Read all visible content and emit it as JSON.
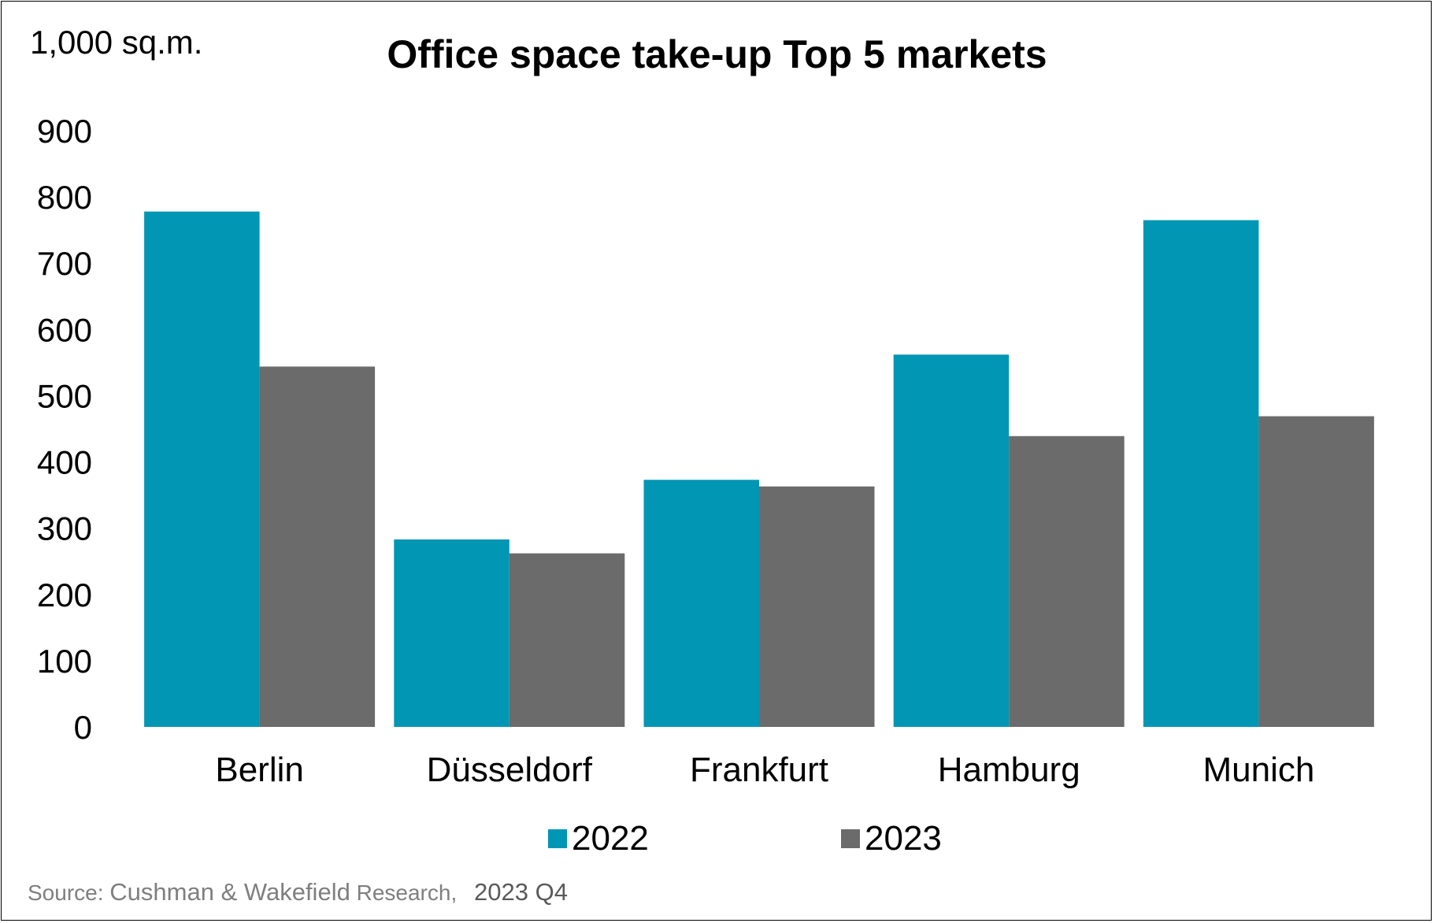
{
  "chart_data": {
    "type": "bar",
    "title": "Office space take-up Top 5 markets",
    "unit_label": "1,000 sq.m.",
    "categories": [
      "Berlin",
      "Düsseldorf",
      "Frankfurt",
      "Hamburg",
      "Munich"
    ],
    "series": [
      {
        "name": "2022",
        "color": "#0096b4",
        "values": [
          778,
          283,
          373,
          562,
          765
        ]
      },
      {
        "name": "2023",
        "color": "#6a6b6a",
        "values": [
          544,
          262,
          363,
          439,
          469
        ]
      }
    ],
    "ylim": [
      0,
      900
    ],
    "yticks": [
      0,
      100,
      200,
      300,
      400,
      500,
      600,
      700,
      800,
      900
    ],
    "grid": false,
    "legend_position": "bottom"
  },
  "source": {
    "prefix": "Source:",
    "publisher": "Cushman & Wakefield",
    "suffix": "Research,",
    "period": "2023 Q4"
  }
}
